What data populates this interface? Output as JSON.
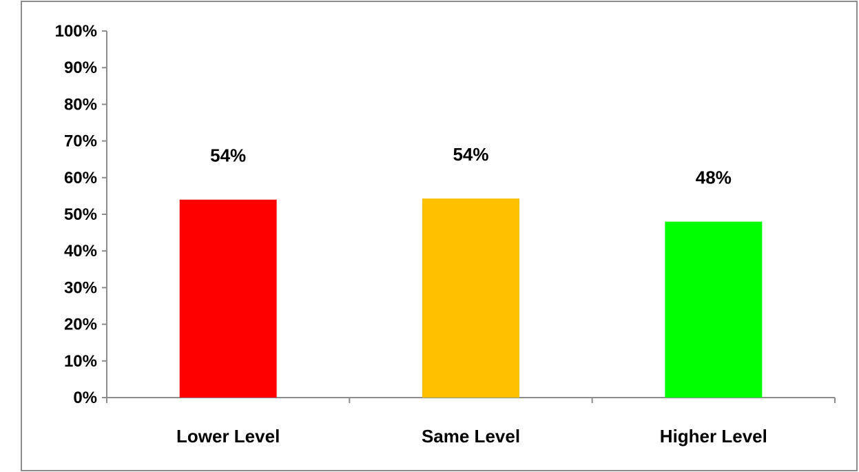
{
  "chart_data": {
    "type": "bar",
    "categories": [
      "Lower Level",
      "Same Level",
      "Higher Level"
    ],
    "values": [
      54,
      54.3,
      48
    ],
    "data_labels": [
      "54%",
      "54%",
      "48%"
    ],
    "colors": [
      "#ff0000",
      "#ffc000",
      "#00ff00"
    ],
    "ylim": [
      0,
      100
    ],
    "yticks": [
      0,
      10,
      20,
      30,
      40,
      50,
      60,
      70,
      80,
      90,
      100
    ],
    "ytick_labels": [
      "0%",
      "10%",
      "20%",
      "30%",
      "40%",
      "50%",
      "60%",
      "70%",
      "80%",
      "90%",
      "100%"
    ],
    "title": "",
    "xlabel": "",
    "ylabel": "",
    "grid": false,
    "legend": false
  }
}
